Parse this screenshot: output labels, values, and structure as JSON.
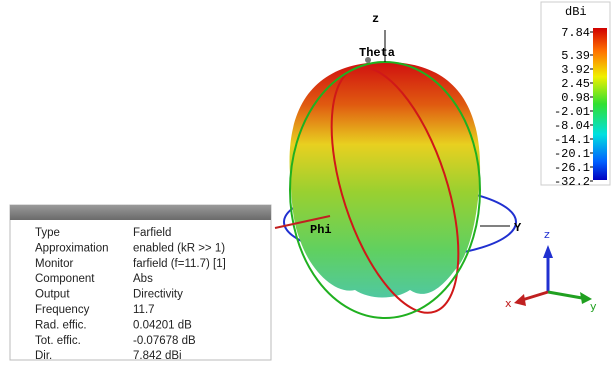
{
  "scene": {
    "axis_labels": {
      "z": "z",
      "theta": "Theta",
      "y": "Y",
      "phi": "Phi"
    },
    "triad": {
      "z": "z",
      "x": "x",
      "y": "y"
    }
  },
  "colorbar": {
    "unit": "dBi",
    "ticks": [
      "7.84",
      "5.39",
      "3.92",
      "2.45",
      "0.98",
      "-2.01",
      "-8.04",
      "-14.1",
      "-20.1",
      "-26.1",
      "-32.2"
    ]
  },
  "info_panel": {
    "rows": [
      [
        "Type",
        "Farfield"
      ],
      [
        "Approximation",
        "enabled (kR >> 1)"
      ],
      [
        "Monitor",
        "farfield (f=11.7) [1]"
      ],
      [
        "Component",
        "Abs"
      ],
      [
        "Output",
        "Directivity"
      ],
      [
        "Frequency",
        "11.7"
      ],
      [
        "Rad. effic.",
        "0.04201 dB"
      ],
      [
        "Tot. effic.",
        "-0.07678 dB"
      ],
      [
        "Dir.",
        "7.842 dBi"
      ]
    ]
  }
}
